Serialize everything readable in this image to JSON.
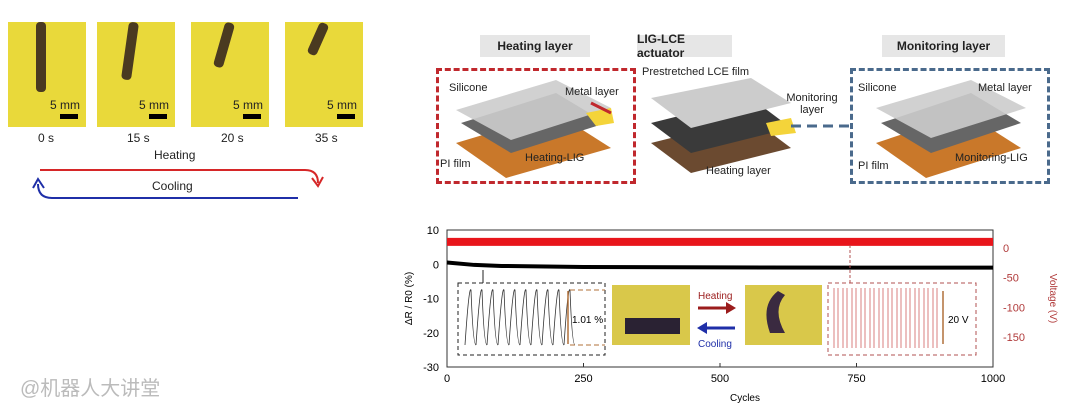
{
  "photos": [
    {
      "time": "0 s",
      "scale": "5 mm"
    },
    {
      "time": "15 s",
      "scale": "5 mm"
    },
    {
      "time": "20 s",
      "scale": "5 mm"
    },
    {
      "time": "35 s",
      "scale": "5 mm"
    }
  ],
  "cycle": {
    "heating": "Heating",
    "cooling": "Cooling",
    "heat_color": "#d62728",
    "cool_color": "#1f2fa8"
  },
  "panels": {
    "heating": {
      "title": "Heating layer",
      "labels": [
        "Silicone",
        "Metal layer",
        "PI film",
        "Heating-LIG"
      ],
      "color": "#c0282d"
    },
    "actuator": {
      "title": "LIG-LCE actuator",
      "labels": [
        "Prestretched LCE film",
        "Monitoring layer",
        "Heating layer"
      ]
    },
    "monitoring": {
      "title": "Monitoring layer",
      "labels": [
        "Silicone",
        "Metal layer",
        "PI film",
        "Monitoring-LIG"
      ],
      "color": "#4a6a8c"
    }
  },
  "chart_data": {
    "type": "line",
    "xlabel": "Cycles",
    "ylabel": "ΔR / R0 (%)",
    "y2label": "Voltage (V)",
    "xlim": [
      0,
      1000
    ],
    "ylim": [
      -30,
      10
    ],
    "y2lim": [
      -200,
      30
    ],
    "xticks": [
      "0",
      "250",
      "500",
      "750",
      "1000"
    ],
    "yticks": [
      "10",
      "0",
      "-10",
      "-20",
      "-30"
    ],
    "y2ticks": [
      "0",
      "-50",
      "-100",
      "-150"
    ],
    "series": [
      {
        "axis": "left",
        "color": "#000000",
        "x": [
          0,
          50,
          100,
          250,
          500,
          750,
          1000
        ],
        "y": [
          0.5,
          -0.2,
          -0.5,
          -0.8,
          -0.9,
          -1,
          -1
        ]
      },
      {
        "axis": "right",
        "color": "#e8151b",
        "x": [
          0,
          1000
        ],
        "y": [
          10,
          10
        ]
      }
    ],
    "insets": {
      "resistance_amp": "1.01 %",
      "voltage_amp": "20 V",
      "heating": "Heating",
      "cooling": "Cooling"
    }
  },
  "watermark": "@机器人大讲堂"
}
